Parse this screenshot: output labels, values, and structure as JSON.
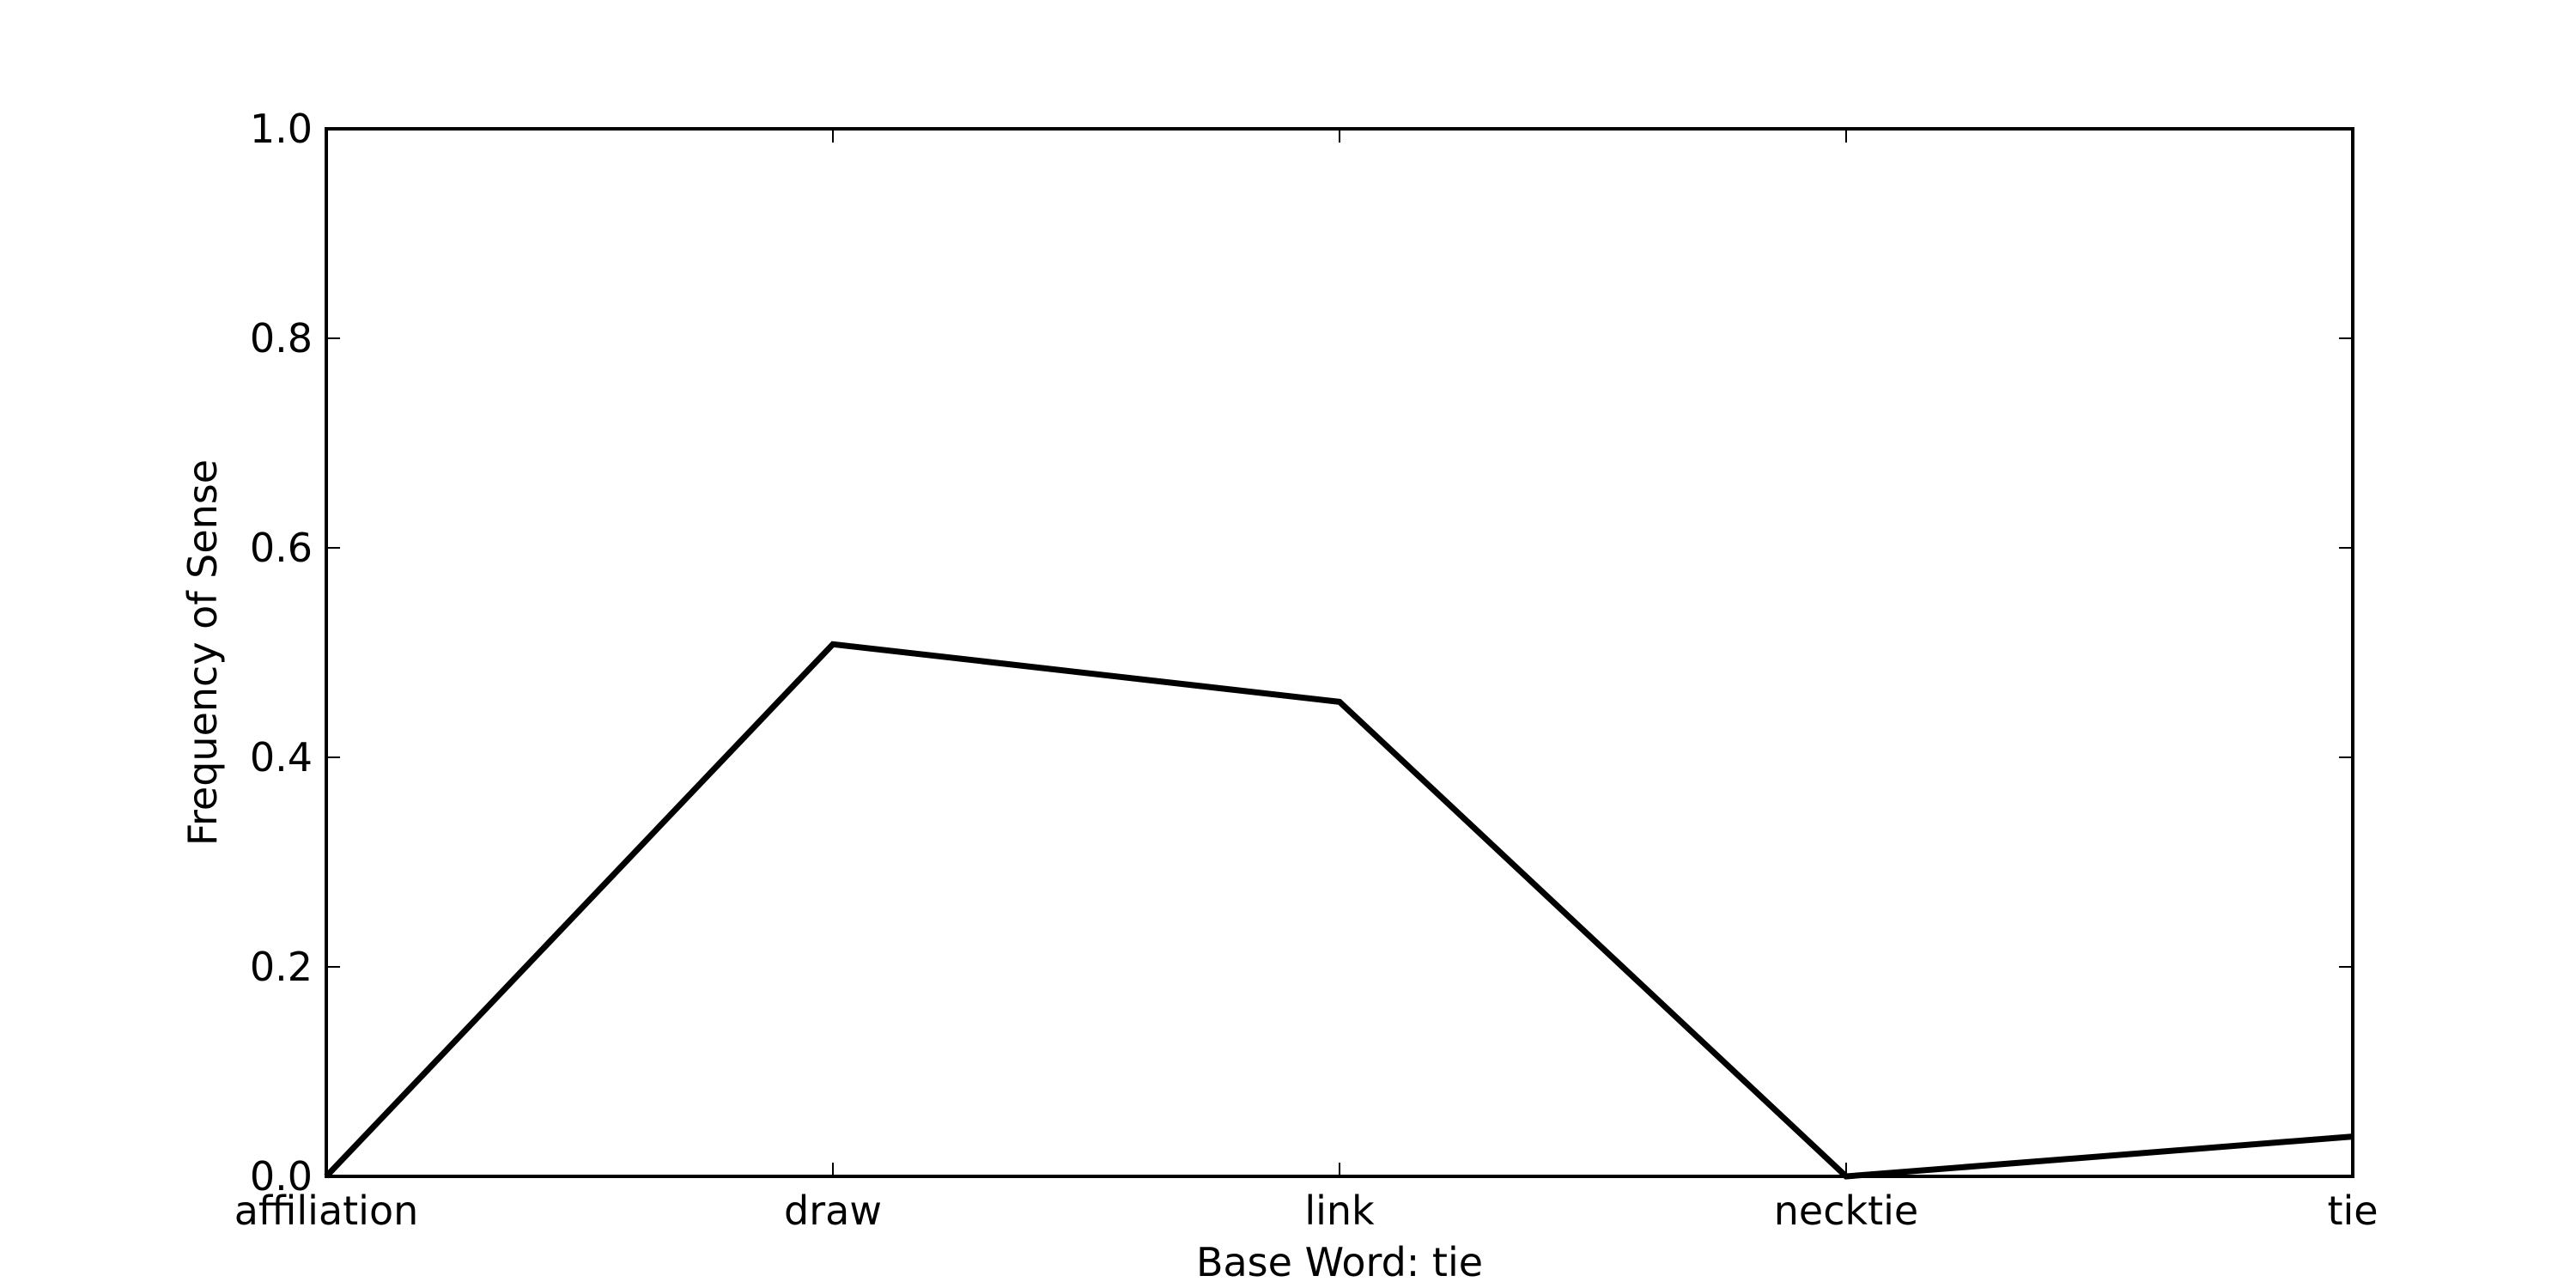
{
  "chart_data": {
    "type": "line",
    "categories": [
      "affiliation",
      "draw",
      "link",
      "necktie",
      "tie"
    ],
    "series": [
      {
        "values": [
          0.0,
          0.508,
          0.453,
          0.0,
          0.038
        ]
      }
    ],
    "xlabel": "Base Word: tie",
    "ylabel": "Frequency of Sense",
    "ylim": [
      0.0,
      1.0
    ],
    "yticks": [
      "0.0",
      "0.2",
      "0.4",
      "0.6",
      "0.8",
      "1.0"
    ],
    "grid": false,
    "legend": "none",
    "line_color": "#000000"
  }
}
